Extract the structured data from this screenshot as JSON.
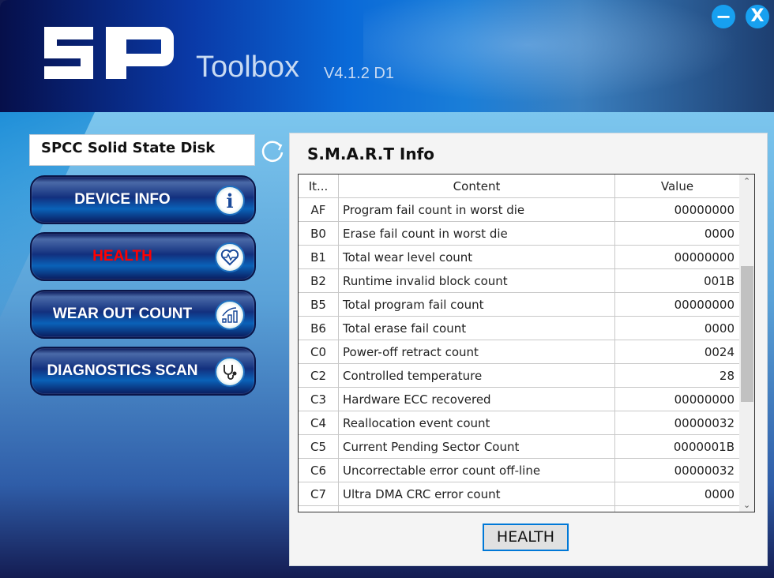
{
  "header": {
    "logo_text": "SP",
    "app_title": "Toolbox",
    "version": "V4.1.2 D1",
    "minimize_label": "−",
    "close_label": "X"
  },
  "sidebar": {
    "disk_name": "SPCC Solid State Disk",
    "items": [
      {
        "label": "DEVICE INFO",
        "icon": "info-icon",
        "active": false
      },
      {
        "label": "HEALTH",
        "icon": "heart-pulse-icon",
        "active": true
      },
      {
        "label": "WEAR OUT COUNT",
        "icon": "chart-growth-icon",
        "active": false
      },
      {
        "label": "DIAGNOSTICS SCAN",
        "icon": "stethoscope-icon",
        "active": false
      }
    ],
    "active_color": "#ff0000"
  },
  "panel": {
    "title": "S.M.A.R.T Info",
    "columns": [
      "It...",
      "Content",
      "Value"
    ],
    "rows": [
      [
        "AF",
        "Program fail count in worst die",
        "00000000"
      ],
      [
        "B0",
        "Erase fail count in worst die",
        "0000"
      ],
      [
        "B1",
        "Total wear level count",
        "00000000"
      ],
      [
        "B2",
        "Runtime invalid block count",
        "001B"
      ],
      [
        "B5",
        "Total program fail count",
        "00000000"
      ],
      [
        "B6",
        "Total erase fail count",
        "0000"
      ],
      [
        "C0",
        "Power-off retract count",
        "0024"
      ],
      [
        "C2",
        "Controlled temperature",
        "28"
      ],
      [
        "C3",
        "Hardware ECC recovered",
        "00000000"
      ],
      [
        "C4",
        "Reallocation event count",
        "00000032"
      ],
      [
        "C5",
        "Current Pending Sector Count",
        "0000001B"
      ],
      [
        "C6",
        "Uncorrectable error count off-line",
        "00000032"
      ],
      [
        "C7",
        "Ultra DMA CRC error count",
        "0000"
      ],
      [
        "",
        "",
        ""
      ]
    ],
    "scroll_position_percent": 45,
    "button_label": "HEALTH"
  }
}
